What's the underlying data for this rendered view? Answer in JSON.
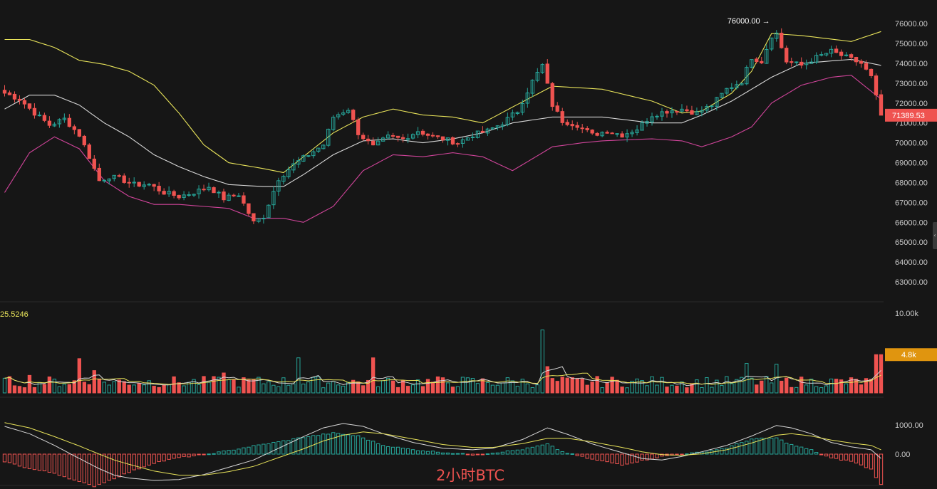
{
  "caption": "2小时BTC",
  "colors": {
    "background": "#161616",
    "up": "#26a69a",
    "down": "#ef5350",
    "boll_upper": "#e8e35a",
    "boll_mid": "#d8d8d8",
    "boll_lower": "#d0449a",
    "ma_fast": "#e8e35a",
    "ma_slow": "#d8d8d8",
    "price_tag": "#ef5350",
    "volume_tag": "#e0950f"
  },
  "icons": {
    "side_tab": "chevron-left-icon"
  },
  "chart_data": [
    {
      "type": "candlestick",
      "panel": "price",
      "y_ticks": [
        "76000.00",
        "75000.00",
        "74000.00",
        "73000.00",
        "72000.00",
        "71000.00",
        "70000.00",
        "69000.00",
        "68000.00",
        "67000.00",
        "66000.00",
        "65000.00",
        "64000.00",
        "63000.00"
      ],
      "ylim": [
        62500,
        76400
      ],
      "high_marker": {
        "label": "76000.00",
        "value": 76000,
        "bar_index": 154
      },
      "last_price_label": "71389.53",
      "last_price": 71389.53,
      "bollinger_anchors": {
        "upper": [
          [
            0,
            75200
          ],
          [
            5,
            75200
          ],
          [
            10,
            74800
          ],
          [
            15,
            74150
          ],
          [
            20,
            73950
          ],
          [
            25,
            73600
          ],
          [
            30,
            72900
          ],
          [
            35,
            71500
          ],
          [
            40,
            69900
          ],
          [
            45,
            69000
          ],
          [
            52,
            68700
          ],
          [
            56,
            68500
          ],
          [
            60,
            69300
          ],
          [
            66,
            70500
          ],
          [
            72,
            71300
          ],
          [
            78,
            71700
          ],
          [
            84,
            71400
          ],
          [
            90,
            71300
          ],
          [
            96,
            71000
          ],
          [
            102,
            71800
          ],
          [
            110,
            72850
          ],
          [
            120,
            72700
          ],
          [
            130,
            72100
          ],
          [
            136,
            71500
          ],
          [
            140,
            71600
          ],
          [
            146,
            72500
          ],
          [
            150,
            73600
          ],
          [
            154,
            75500
          ],
          [
            160,
            75400
          ],
          [
            170,
            75100
          ],
          [
            176,
            75600
          ]
        ],
        "mid": [
          [
            0,
            71700
          ],
          [
            5,
            72400
          ],
          [
            10,
            72400
          ],
          [
            15,
            71900
          ],
          [
            20,
            71000
          ],
          [
            25,
            70300
          ],
          [
            30,
            69400
          ],
          [
            35,
            68800
          ],
          [
            40,
            68300
          ],
          [
            45,
            67900
          ],
          [
            52,
            67800
          ],
          [
            56,
            67800
          ],
          [
            60,
            68400
          ],
          [
            66,
            69400
          ],
          [
            72,
            70100
          ],
          [
            78,
            70200
          ],
          [
            84,
            70000
          ],
          [
            90,
            70200
          ],
          [
            96,
            70500
          ],
          [
            102,
            71000
          ],
          [
            110,
            71300
          ],
          [
            120,
            71300
          ],
          [
            130,
            71000
          ],
          [
            136,
            71000
          ],
          [
            140,
            71400
          ],
          [
            146,
            72100
          ],
          [
            150,
            72700
          ],
          [
            154,
            73300
          ],
          [
            160,
            74000
          ],
          [
            170,
            74200
          ],
          [
            176,
            73900
          ]
        ],
        "lower": [
          [
            0,
            67500
          ],
          [
            5,
            69500
          ],
          [
            10,
            70300
          ],
          [
            15,
            69700
          ],
          [
            20,
            68100
          ],
          [
            25,
            67300
          ],
          [
            30,
            66900
          ],
          [
            35,
            66900
          ],
          [
            40,
            66800
          ],
          [
            45,
            66700
          ],
          [
            50,
            66200
          ],
          [
            56,
            66200
          ],
          [
            60,
            66000
          ],
          [
            66,
            66800
          ],
          [
            72,
            68600
          ],
          [
            78,
            69400
          ],
          [
            84,
            69300
          ],
          [
            90,
            69500
          ],
          [
            96,
            69300
          ],
          [
            102,
            68600
          ],
          [
            110,
            69800
          ],
          [
            116,
            70000
          ],
          [
            120,
            70100
          ],
          [
            130,
            70200
          ],
          [
            136,
            70100
          ],
          [
            140,
            69800
          ],
          [
            146,
            70300
          ],
          [
            150,
            70800
          ],
          [
            154,
            72000
          ],
          [
            160,
            72900
          ],
          [
            166,
            73300
          ],
          [
            170,
            73400
          ],
          [
            176,
            72200
          ]
        ]
      },
      "close_anchors": [
        [
          0,
          72500
        ],
        [
          3,
          72200
        ],
        [
          6,
          71500
        ],
        [
          9,
          70900
        ],
        [
          12,
          71200
        ],
        [
          15,
          70400
        ],
        [
          17,
          69300
        ],
        [
          19,
          68100
        ],
        [
          21,
          68300
        ],
        [
          23,
          68200
        ],
        [
          26,
          67900
        ],
        [
          29,
          67900
        ],
        [
          32,
          67500
        ],
        [
          35,
          67300
        ],
        [
          38,
          67500
        ],
        [
          41,
          67800
        ],
        [
          44,
          67200
        ],
        [
          47,
          67400
        ],
        [
          50,
          66000
        ],
        [
          52,
          66300
        ],
        [
          55,
          68200
        ],
        [
          58,
          68900
        ],
        [
          61,
          69400
        ],
        [
          64,
          69900
        ],
        [
          66,
          71300
        ],
        [
          69,
          71700
        ],
        [
          71,
          70500
        ],
        [
          74,
          69800
        ],
        [
          77,
          70300
        ],
        [
          80,
          70200
        ],
        [
          83,
          70600
        ],
        [
          86,
          70300
        ],
        [
          88,
          70200
        ],
        [
          91,
          70000
        ],
        [
          94,
          70400
        ],
        [
          97,
          70600
        ],
        [
          100,
          71000
        ],
        [
          103,
          71600
        ],
        [
          106,
          73100
        ],
        [
          108,
          73900
        ],
        [
          110,
          71900
        ],
        [
          112,
          71100
        ],
        [
          115,
          70900
        ],
        [
          118,
          70400
        ],
        [
          121,
          70600
        ],
        [
          124,
          70400
        ],
        [
          127,
          70700
        ],
        [
          130,
          71400
        ],
        [
          133,
          71600
        ],
        [
          136,
          71700
        ],
        [
          139,
          71500
        ],
        [
          142,
          71900
        ],
        [
          145,
          72700
        ],
        [
          148,
          73100
        ],
        [
          150,
          74300
        ],
        [
          152,
          74100
        ],
        [
          154,
          75400
        ],
        [
          155,
          75500
        ],
        [
          157,
          74100
        ],
        [
          160,
          73900
        ],
        [
          163,
          74300
        ],
        [
          166,
          74600
        ],
        [
          169,
          74300
        ],
        [
          172,
          74000
        ],
        [
          174,
          73300
        ],
        [
          175,
          72300
        ],
        [
          176,
          71389.53
        ]
      ]
    },
    {
      "type": "bar",
      "panel": "volume",
      "top_left_label": "25.5246",
      "y_ticks": [
        "10.00k"
      ],
      "ylim": [
        0,
        10000
      ],
      "last_volume_label": "4.8k",
      "last_volume": 4800,
      "spikes": [
        [
          5,
          2200
        ],
        [
          15,
          4300
        ],
        [
          18,
          2800
        ],
        [
          44,
          2500
        ],
        [
          59,
          4400
        ],
        [
          74,
          4400
        ],
        [
          108,
          7900
        ],
        [
          109,
          3300
        ],
        [
          149,
          3700
        ],
        [
          155,
          3600
        ],
        [
          175,
          4800
        ]
      ],
      "base_volume": 1600
    },
    {
      "type": "histogram",
      "panel": "macd",
      "y_ticks": [
        "1000.00",
        "0.00"
      ],
      "ylim": [
        -1300,
        1300
      ],
      "histogram_anchors": [
        [
          0,
          -250
        ],
        [
          5,
          -500
        ],
        [
          10,
          -650
        ],
        [
          15,
          -950
        ],
        [
          18,
          -1100
        ],
        [
          21,
          -900
        ],
        [
          25,
          -620
        ],
        [
          30,
          -300
        ],
        [
          35,
          -120
        ],
        [
          40,
          -20
        ],
        [
          45,
          120
        ],
        [
          50,
          280
        ],
        [
          55,
          420
        ],
        [
          60,
          580
        ],
        [
          66,
          720
        ],
        [
          71,
          620
        ],
        [
          76,
          300
        ],
        [
          82,
          150
        ],
        [
          88,
          60
        ],
        [
          94,
          -20
        ],
        [
          98,
          40
        ],
        [
          104,
          160
        ],
        [
          109,
          340
        ],
        [
          112,
          80
        ],
        [
          118,
          -180
        ],
        [
          124,
          -360
        ],
        [
          128,
          -220
        ],
        [
          132,
          -80
        ],
        [
          136,
          10
        ],
        [
          140,
          60
        ],
        [
          145,
          220
        ],
        [
          150,
          520
        ],
        [
          155,
          550
        ],
        [
          158,
          320
        ],
        [
          162,
          140
        ],
        [
          166,
          -140
        ],
        [
          170,
          -240
        ],
        [
          174,
          -520
        ],
        [
          176,
          -1050
        ]
      ],
      "dif_anchors": [
        [
          0,
          950
        ],
        [
          5,
          700
        ],
        [
          10,
          300
        ],
        [
          15,
          -150
        ],
        [
          19,
          -500
        ],
        [
          22,
          -720
        ],
        [
          25,
          -820
        ],
        [
          30,
          -900
        ],
        [
          35,
          -870
        ],
        [
          40,
          -700
        ],
        [
          45,
          -450
        ],
        [
          50,
          -200
        ],
        [
          55,
          200
        ],
        [
          60,
          600
        ],
        [
          64,
          900
        ],
        [
          68,
          1050
        ],
        [
          72,
          950
        ],
        [
          76,
          700
        ],
        [
          82,
          400
        ],
        [
          88,
          200
        ],
        [
          94,
          150
        ],
        [
          98,
          200
        ],
        [
          104,
          500
        ],
        [
          109,
          900
        ],
        [
          113,
          680
        ],
        [
          118,
          350
        ],
        [
          124,
          50
        ],
        [
          128,
          -150
        ],
        [
          132,
          -200
        ],
        [
          136,
          -80
        ],
        [
          140,
          80
        ],
        [
          145,
          300
        ],
        [
          150,
          620
        ],
        [
          155,
          980
        ],
        [
          158,
          900
        ],
        [
          162,
          700
        ],
        [
          166,
          400
        ],
        [
          170,
          250
        ],
        [
          174,
          150
        ],
        [
          176,
          -150
        ]
      ],
      "dea_anchors": [
        [
          0,
          1080
        ],
        [
          5,
          900
        ],
        [
          10,
          600
        ],
        [
          15,
          280
        ],
        [
          19,
          0
        ],
        [
          22,
          -200
        ],
        [
          25,
          -350
        ],
        [
          30,
          -580
        ],
        [
          35,
          -720
        ],
        [
          40,
          -720
        ],
        [
          45,
          -600
        ],
        [
          50,
          -420
        ],
        [
          55,
          -120
        ],
        [
          60,
          180
        ],
        [
          64,
          450
        ],
        [
          68,
          650
        ],
        [
          72,
          760
        ],
        [
          76,
          700
        ],
        [
          82,
          520
        ],
        [
          88,
          330
        ],
        [
          94,
          230
        ],
        [
          98,
          230
        ],
        [
          104,
          360
        ],
        [
          109,
          540
        ],
        [
          113,
          540
        ],
        [
          118,
          420
        ],
        [
          124,
          230
        ],
        [
          128,
          80
        ],
        [
          132,
          -20
        ],
        [
          136,
          -40
        ],
        [
          140,
          10
        ],
        [
          145,
          150
        ],
        [
          150,
          380
        ],
        [
          155,
          650
        ],
        [
          158,
          700
        ],
        [
          162,
          620
        ],
        [
          166,
          480
        ],
        [
          170,
          380
        ],
        [
          174,
          300
        ],
        [
          176,
          150
        ]
      ]
    }
  ]
}
